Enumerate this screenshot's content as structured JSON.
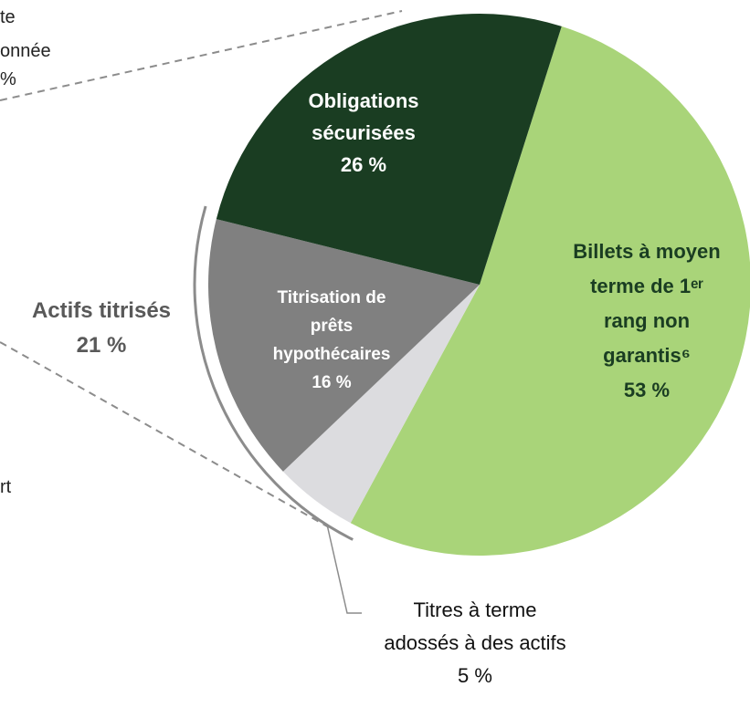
{
  "chart_data": {
    "type": "pie",
    "categories": [
      "Billets à moyen terme de 1ᵉʳ rang non garantis⁶",
      "Titres à terme adossés à des actifs",
      "Titrisation de prêts hypothécaires",
      "Obligations sécurisées"
    ],
    "values": [
      53,
      5,
      16,
      26
    ],
    "value_labels": [
      "53 %",
      "5 %",
      "16 %",
      "26 %"
    ],
    "colors": [
      "#a9d479",
      "#dcdcdf",
      "#808080",
      "#1a3d22"
    ],
    "group": {
      "name": "Actifs titrisés",
      "value": 21,
      "value_label": "21 %"
    },
    "annotations": [
      "te",
      "onnée",
      "%",
      "rt"
    ]
  }
}
